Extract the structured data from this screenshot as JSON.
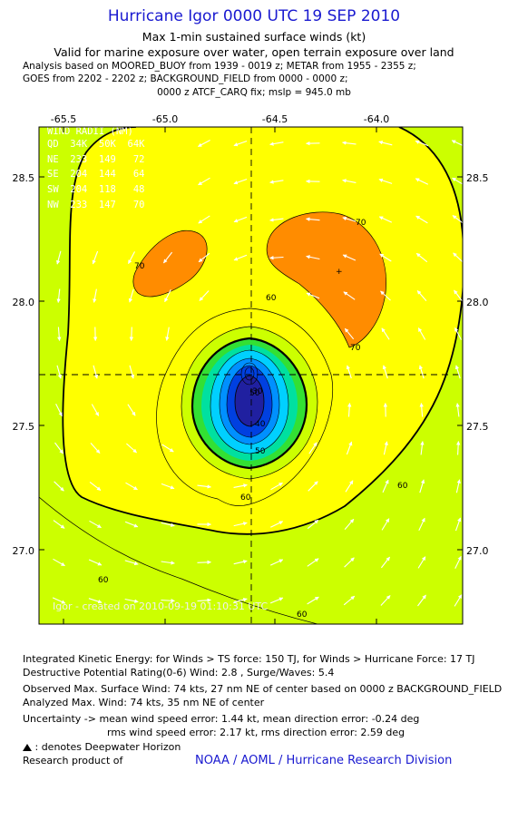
{
  "header": {
    "title": "Hurricane Igor 0000 UTC 19 SEP 2010",
    "subtitle1": "Max 1-min sustained surface winds (kt)",
    "subtitle2": "Valid for marine exposure over water, open terrain exposure over land",
    "analysis1": "Analysis based on MOORED_BUOY from 1939 - 0019 z; METAR from 1955 - 2355 z;",
    "analysis2": "GOES from 2202 - 2202 z; BACKGROUND_FIELD from 0000 - 0000 z;",
    "analysis3": "0000 z ATCF_CARQ fix; mslp = 945.0 mb"
  },
  "map": {
    "lon_ticks": [
      "-65.5",
      "-65.0",
      "-64.5",
      "-64.0"
    ],
    "lat_ticks": [
      "28.5",
      "28.0",
      "27.5",
      "27.0"
    ],
    "lon_range": [
      -65.6,
      -63.9
    ],
    "lat_range": [
      26.7,
      28.7
    ],
    "storm_center": {
      "lon": -64.6,
      "lat": 27.7
    },
    "max_wind_location": {
      "lon": -64.2,
      "lat": 28.12
    },
    "contour_labels": [
      "70",
      "70",
      "70",
      "60",
      "60",
      "60",
      "60",
      "50",
      "50",
      "40",
      "30",
      "60"
    ],
    "wind_radii": {
      "header": "WIND RADII (NM)",
      "columns": "QD  34K  50K  64K",
      "rows": [
        "NE  233  149   72",
        "SE  204  144   64",
        "SW  204  118   48",
        "NW  233  147   70"
      ]
    },
    "stamp": "Igor - created on 2010-09-19 01:10:31 UTC",
    "colors": {
      "bg_60_70": "#ffff00",
      "below_60": "#ccff00",
      "below_60_outer": "#a6ff00",
      "above_70": "#ff8c00",
      "inner_50": "#33e033",
      "inner_40": "#00e0a0",
      "inner_30": "#00d0ff",
      "inner_20": "#0090ff",
      "inner_10": "#0040e0",
      "eye": "#2020a0"
    }
  },
  "footer": {
    "ike": "Integrated Kinetic Energy:  for Winds > TS force: 150 TJ,  for Winds > Hurricane Force: 17 TJ",
    "dpr": "Destructive Potential Rating(0-6)   Wind: 2.8 , Surge/Waves: 5.4",
    "observed": "Observed Max. Surface Wind: 74 kts, 27 nm NE of center based on 0000 z BACKGROUND_FIELD",
    "analyzed": "Analyzed Max. Wind: 74 kts, 35 nm NE of center",
    "uncert1": "Uncertainty -> mean wind speed error: 1.44 kt,   mean direction error:  -0.24 deg",
    "uncert2": "rms wind speed error: 2.17 kt,   rms direction error: 2.59 deg",
    "deepwater": ": denotes Deepwater Horizon",
    "research": "Research product of",
    "credit": "NOAA / AOML / Hurricane Research Division"
  }
}
